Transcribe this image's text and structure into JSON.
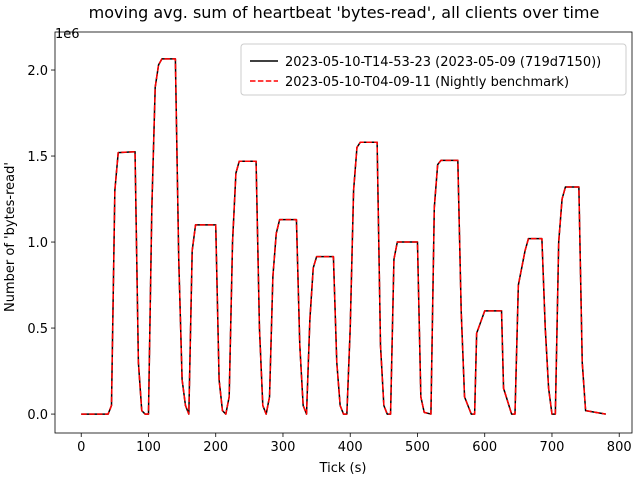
{
  "chart_data": {
    "type": "line",
    "title": "moving avg. sum of heartbeat 'bytes-read', all clients over time",
    "x_label": "Tick (s)",
    "y_label": "Number of 'bytes-read'",
    "y_offset_label": "1e6",
    "x": [
      0,
      40,
      45,
      50,
      55,
      80,
      85,
      90,
      95,
      100,
      105,
      110,
      115,
      120,
      140,
      145,
      150,
      155,
      160,
      165,
      170,
      200,
      205,
      210,
      215,
      220,
      225,
      230,
      235,
      260,
      265,
      270,
      275,
      280,
      285,
      290,
      295,
      320,
      325,
      330,
      335,
      340,
      345,
      350,
      375,
      380,
      385,
      390,
      395,
      400,
      405,
      410,
      415,
      440,
      445,
      450,
      455,
      460,
      465,
      470,
      500,
      505,
      510,
      520,
      525,
      530,
      535,
      560,
      565,
      570,
      575,
      580,
      585,
      588,
      600,
      625,
      628,
      640,
      645,
      650,
      660,
      665,
      685,
      690,
      695,
      700,
      705,
      710,
      715,
      720,
      740,
      745,
      750,
      780
    ],
    "series": [
      {
        "name": "2023-05-10-T14-53-23 (2023-05-09 (719d7150))",
        "color": "#000000",
        "dash": "solid",
        "values": [
          0,
          0,
          50000,
          1300000,
          1520000,
          1525000,
          300000,
          20000,
          0,
          0,
          1200000,
          1900000,
          2030000,
          2065000,
          2065000,
          900000,
          200000,
          50000,
          0,
          950000,
          1100000,
          1100000,
          200000,
          20000,
          0,
          100000,
          1000000,
          1400000,
          1470000,
          1470000,
          500000,
          50000,
          0,
          100000,
          800000,
          1050000,
          1130000,
          1130000,
          400000,
          50000,
          0,
          550000,
          850000,
          915000,
          915000,
          300000,
          50000,
          0,
          0,
          500000,
          1300000,
          1550000,
          1580000,
          1580000,
          400000,
          50000,
          0,
          0,
          900000,
          1000000,
          1000000,
          100000,
          10000,
          0,
          1200000,
          1450000,
          1475000,
          1475000,
          600000,
          100000,
          50000,
          0,
          0,
          470000,
          600000,
          600000,
          150000,
          0,
          0,
          750000,
          950000,
          1020000,
          1020000,
          500000,
          150000,
          0,
          0,
          1000000,
          1250000,
          1320000,
          1320000,
          300000,
          20000,
          0
        ]
      },
      {
        "name": "2023-05-10-T04-09-11 (Nightly benchmark)",
        "color": "#ff0000",
        "dash": "dashed",
        "values": [
          0,
          0,
          50000,
          1300000,
          1520000,
          1525000,
          300000,
          20000,
          0,
          0,
          1200000,
          1900000,
          2030000,
          2065000,
          2065000,
          900000,
          200000,
          50000,
          0,
          950000,
          1100000,
          1100000,
          200000,
          20000,
          0,
          100000,
          1000000,
          1400000,
          1470000,
          1470000,
          500000,
          50000,
          0,
          100000,
          800000,
          1050000,
          1130000,
          1130000,
          400000,
          50000,
          0,
          550000,
          850000,
          915000,
          915000,
          300000,
          50000,
          0,
          0,
          500000,
          1300000,
          1550000,
          1580000,
          1580000,
          400000,
          50000,
          0,
          0,
          900000,
          1000000,
          1000000,
          100000,
          10000,
          0,
          1200000,
          1450000,
          1475000,
          1475000,
          600000,
          100000,
          50000,
          0,
          0,
          470000,
          600000,
          600000,
          150000,
          0,
          0,
          750000,
          950000,
          1020000,
          1020000,
          500000,
          150000,
          0,
          0,
          1000000,
          1250000,
          1320000,
          1320000,
          300000,
          20000,
          0
        ]
      }
    ],
    "xlim": [
      -39,
      819
    ],
    "xticks": [
      0,
      100,
      200,
      300,
      400,
      500,
      600,
      700,
      800
    ],
    "ylim": [
      -110000,
      2221000
    ],
    "yticks": [
      {
        "value": 0,
        "label": "0.0"
      },
      {
        "value": 500000,
        "label": "0.5"
      },
      {
        "value": 1000000,
        "label": "1.0"
      },
      {
        "value": 1500000,
        "label": "1.5"
      },
      {
        "value": 2000000,
        "label": "2.0"
      }
    ],
    "grid": false,
    "legend": "upper right"
  }
}
